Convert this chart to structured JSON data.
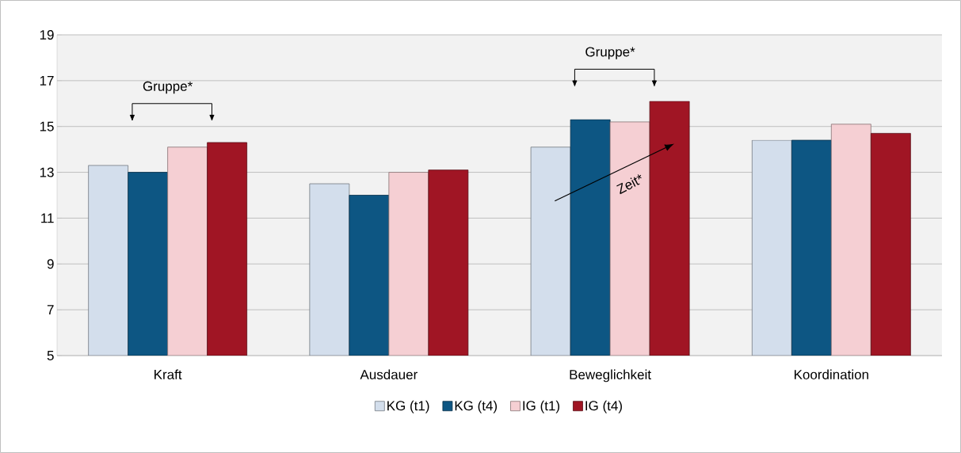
{
  "chart_data": {
    "type": "bar",
    "categories": [
      "Kraft",
      "Ausdauer",
      "Beweglichkeit",
      "Koordination"
    ],
    "series": [
      {
        "name": "KG (t1)",
        "color": "#d3deec",
        "values": [
          13.3,
          12.5,
          14.1,
          14.4
        ]
      },
      {
        "name": "KG (t4)",
        "color": "#0d5683",
        "values": [
          13.0,
          12.0,
          15.3,
          14.4
        ]
      },
      {
        "name": "IG (t1)",
        "color": "#f5cfd3",
        "values": [
          14.1,
          13.0,
          15.2,
          15.1
        ]
      },
      {
        "name": "IG (t4)",
        "color": "#a01524",
        "values": [
          14.3,
          13.1,
          16.1,
          14.7
        ]
      }
    ],
    "ylim": [
      5,
      19
    ],
    "yticks": [
      5,
      7,
      9,
      11,
      13,
      15,
      17,
      19
    ],
    "grid": "y",
    "legend": "bottom",
    "annotations": [
      "Gruppe*",
      "Gruppe*",
      "Zeit*"
    ]
  }
}
